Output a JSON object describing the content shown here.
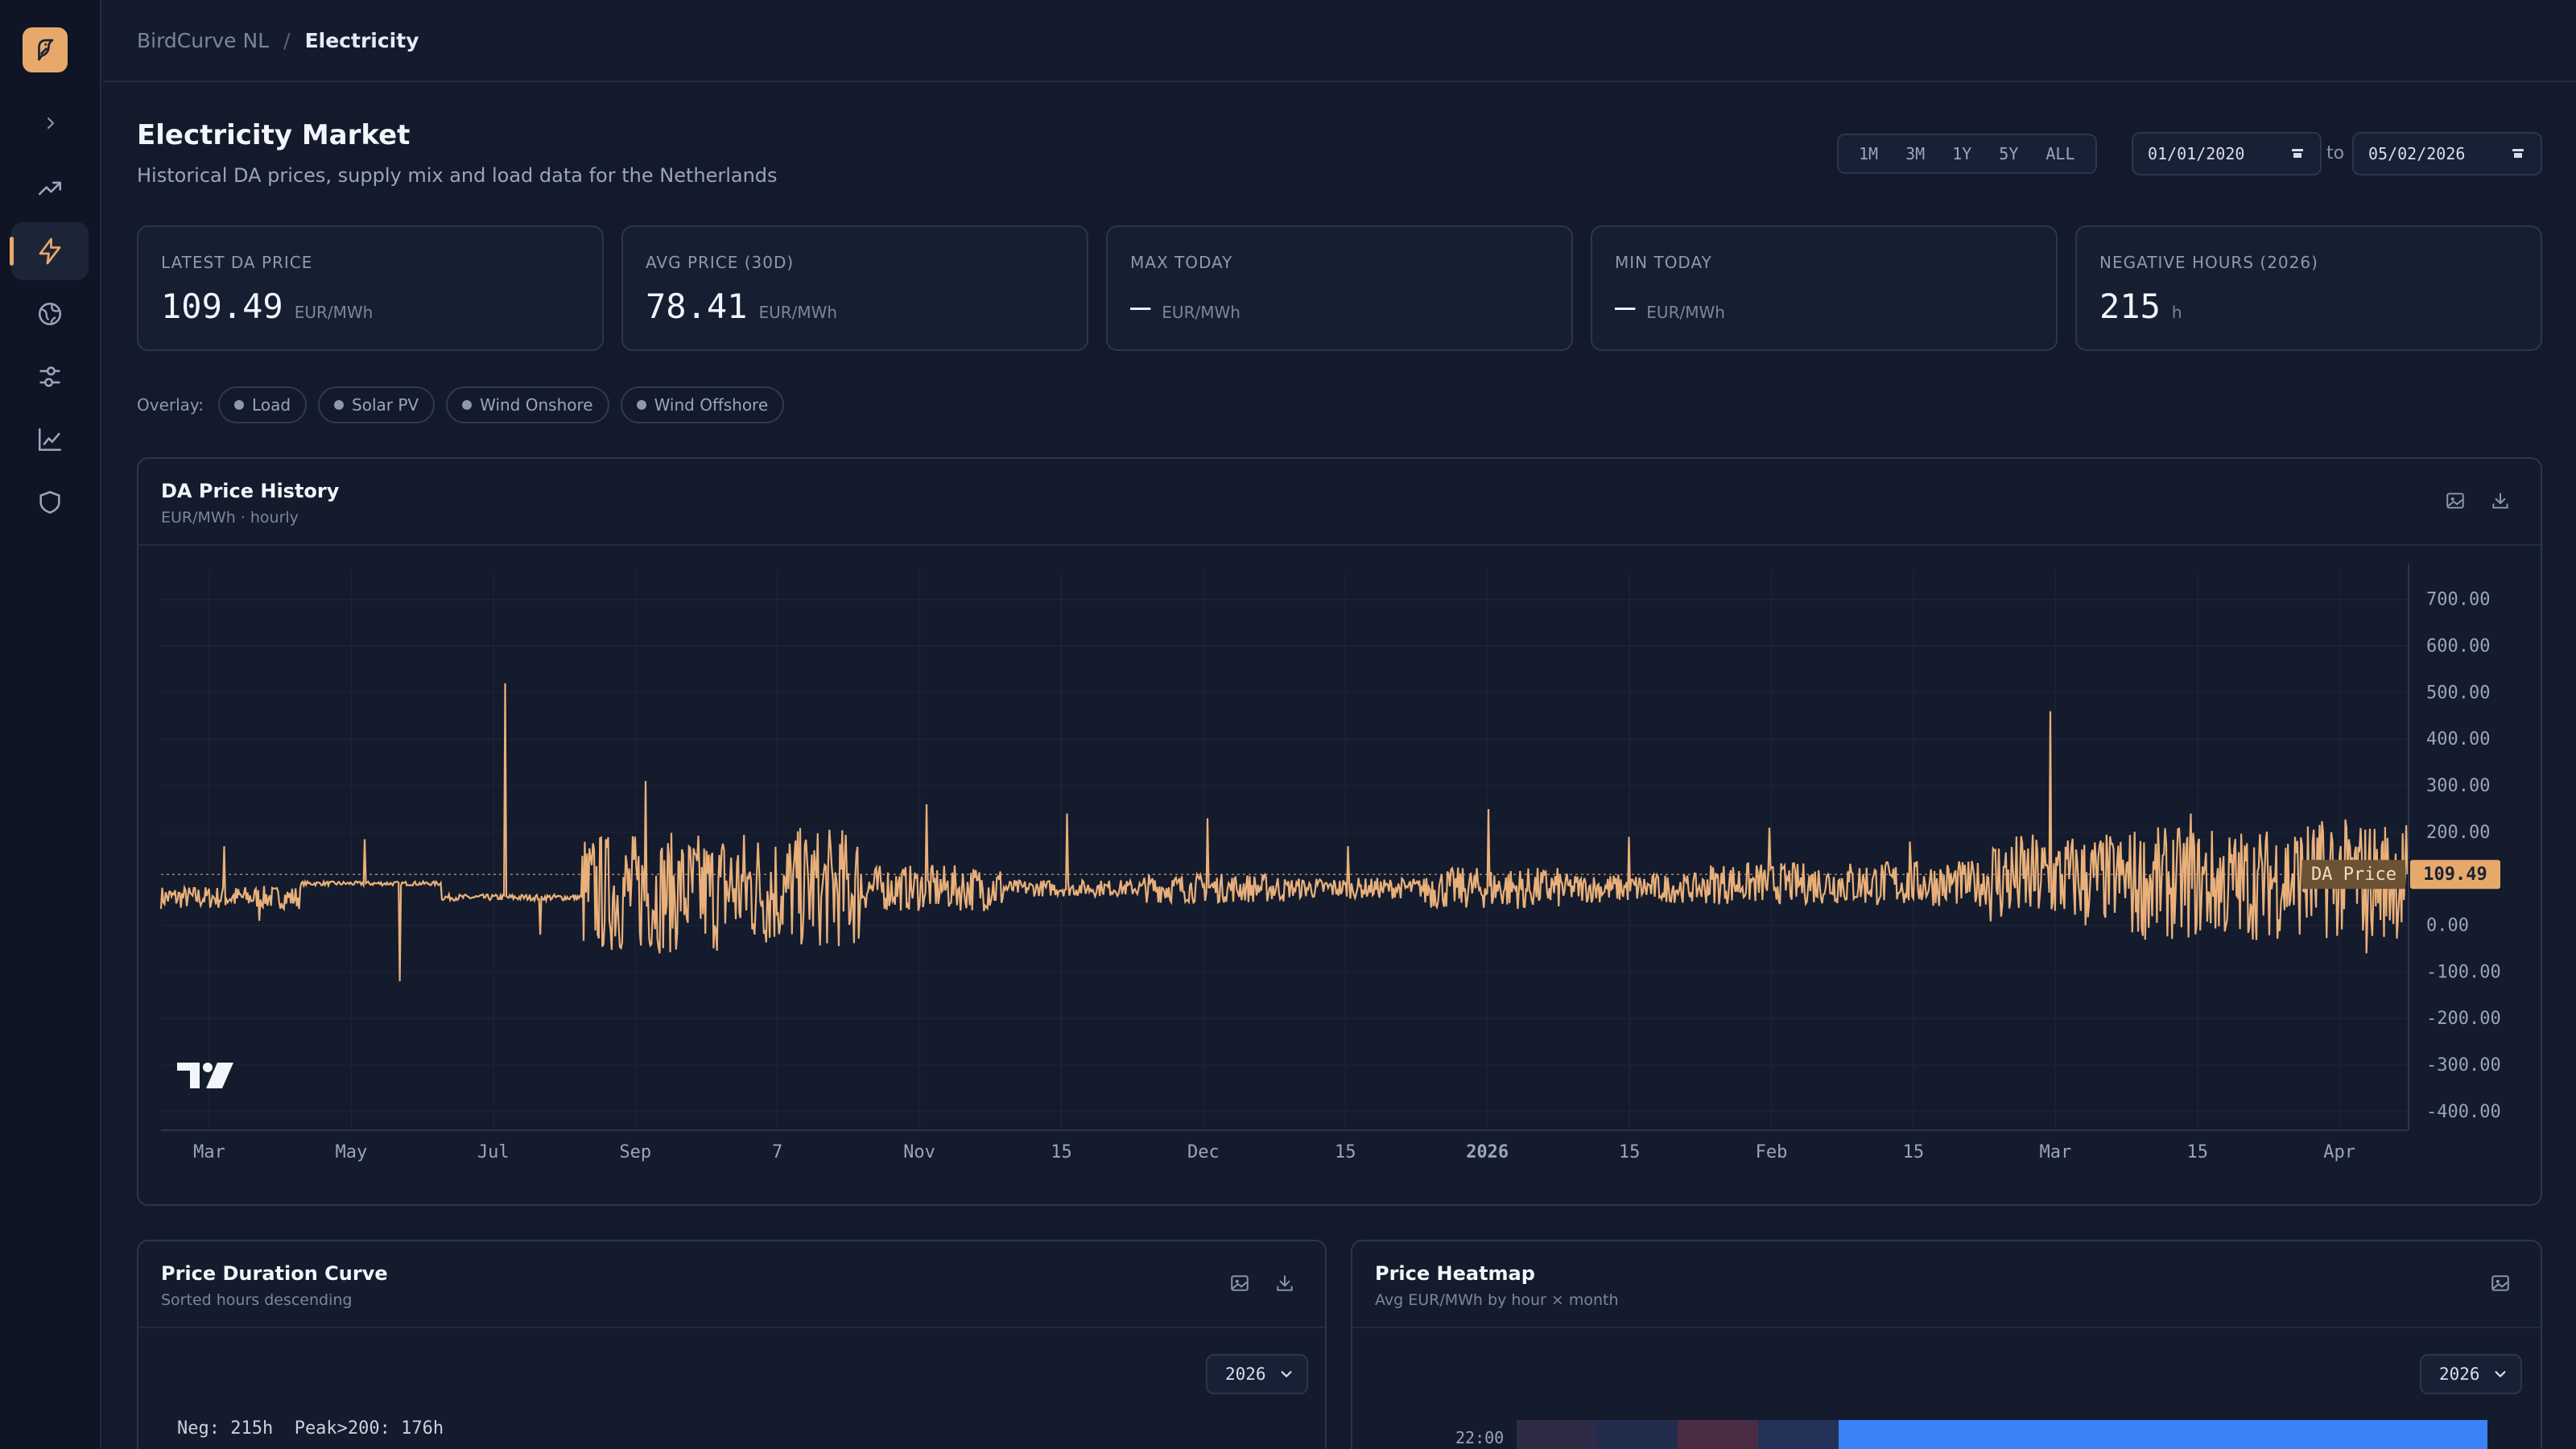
{
  "breadcrumb": {
    "root": "BirdCurve NL",
    "separator": "/",
    "current": "Electricity"
  },
  "header": {
    "title": "Electricity Market",
    "subtitle": "Historical DA prices, supply mix and load data for the Netherlands"
  },
  "range_buttons": [
    "1M",
    "3M",
    "1Y",
    "5Y",
    "ALL"
  ],
  "date_range": {
    "from": "01/01/2020",
    "to_label": "to",
    "to": "05/02/2026"
  },
  "kpis": [
    {
      "label": "LATEST DA PRICE",
      "value": "109.49",
      "unit": "EUR/MWh"
    },
    {
      "label": "AVG PRICE (30D)",
      "value": "78.41",
      "unit": "EUR/MWh"
    },
    {
      "label": "MAX TODAY",
      "value": "—",
      "unit": "EUR/MWh"
    },
    {
      "label": "MIN TODAY",
      "value": "—",
      "unit": "EUR/MWh"
    },
    {
      "label": "NEGATIVE HOURS (2026)",
      "value": "215",
      "unit": "h"
    }
  ],
  "overlay": {
    "label": "Overlay:",
    "chips": [
      "Load",
      "Solar PV",
      "Wind Onshore",
      "Wind Offshore"
    ]
  },
  "price_panel": {
    "title": "DA Price History",
    "subtitle": "EUR/MWh · hourly",
    "icons": [
      "image-icon",
      "download-icon"
    ]
  },
  "duration_panel": {
    "title": "Price Duration Curve",
    "subtitle": "Sorted hours descending",
    "year": "2026",
    "stats": "Neg: 215h  Peak>200: 176h"
  },
  "heatmap_panel": {
    "title": "Price Heatmap",
    "subtitle": "Avg EUR/MWh by hour × month",
    "year": "2026",
    "row_label": "22:00"
  },
  "colors": {
    "accent": "#e7a96b",
    "price_line": "#e9b07a",
    "background": "#131a2b",
    "heatmap_high": "#3b82f6"
  },
  "chart_data": {
    "type": "line",
    "title": "DA Price History",
    "ylabel": "EUR/MWh",
    "series": [
      {
        "name": "DA Price",
        "x": [
          "Mar",
          "May",
          "Jul",
          "Sep",
          "7",
          "Nov",
          "15",
          "Dec",
          "15",
          "2026",
          "15",
          "Feb",
          "15",
          "Mar",
          "15",
          "Apr"
        ],
        "y": [
          [
            60,
            75,
            20,
            170,
            10,
            120
          ],
          [
            90,
            60,
            50,
            185,
            -120,
            110
          ],
          [
            60,
            55,
            40,
            520,
            -20,
            100
          ],
          [
            70,
            330,
            40,
            310,
            30,
            110
          ],
          [
            80,
            380,
            90,
            70,
            60,
            80
          ],
          [
            80,
            160,
            50,
            260,
            70,
            90
          ],
          [
            80,
            100,
            60,
            240,
            75,
            90
          ],
          [
            80,
            120,
            50,
            230,
            70,
            85
          ],
          [
            80,
            110,
            60,
            170,
            70,
            90
          ],
          [
            80,
            160,
            60,
            250,
            40,
            95
          ],
          [
            80,
            130,
            60,
            190,
            60,
            90
          ],
          [
            90,
            160,
            60,
            210,
            70,
            95
          ],
          [
            90,
            170,
            60,
            180,
            60,
            95
          ],
          [
            100,
            250,
            30,
            460,
            0,
            120
          ],
          [
            90,
            280,
            10,
            240,
            0,
            110
          ],
          [
            100,
            250,
            -40,
            200,
            -60,
            109.49
          ]
        ]
      }
    ],
    "x_ticks": [
      "Mar",
      "May",
      "Jul",
      "Sep",
      "7",
      "Nov",
      "15",
      "Dec",
      "15",
      "2026",
      "15",
      "Feb",
      "15",
      "Mar",
      "15",
      "Apr"
    ],
    "y_ticks": [
      "700.00",
      "600.00",
      "500.00",
      "400.00",
      "300.00",
      "200.00",
      "0.00",
      "-100.00",
      "-200.00",
      "-300.00",
      "-400.00"
    ],
    "ylim": [
      -440,
      760
    ],
    "last_value_label": {
      "name": "DA Price",
      "value": "109.49"
    },
    "grid": true
  }
}
